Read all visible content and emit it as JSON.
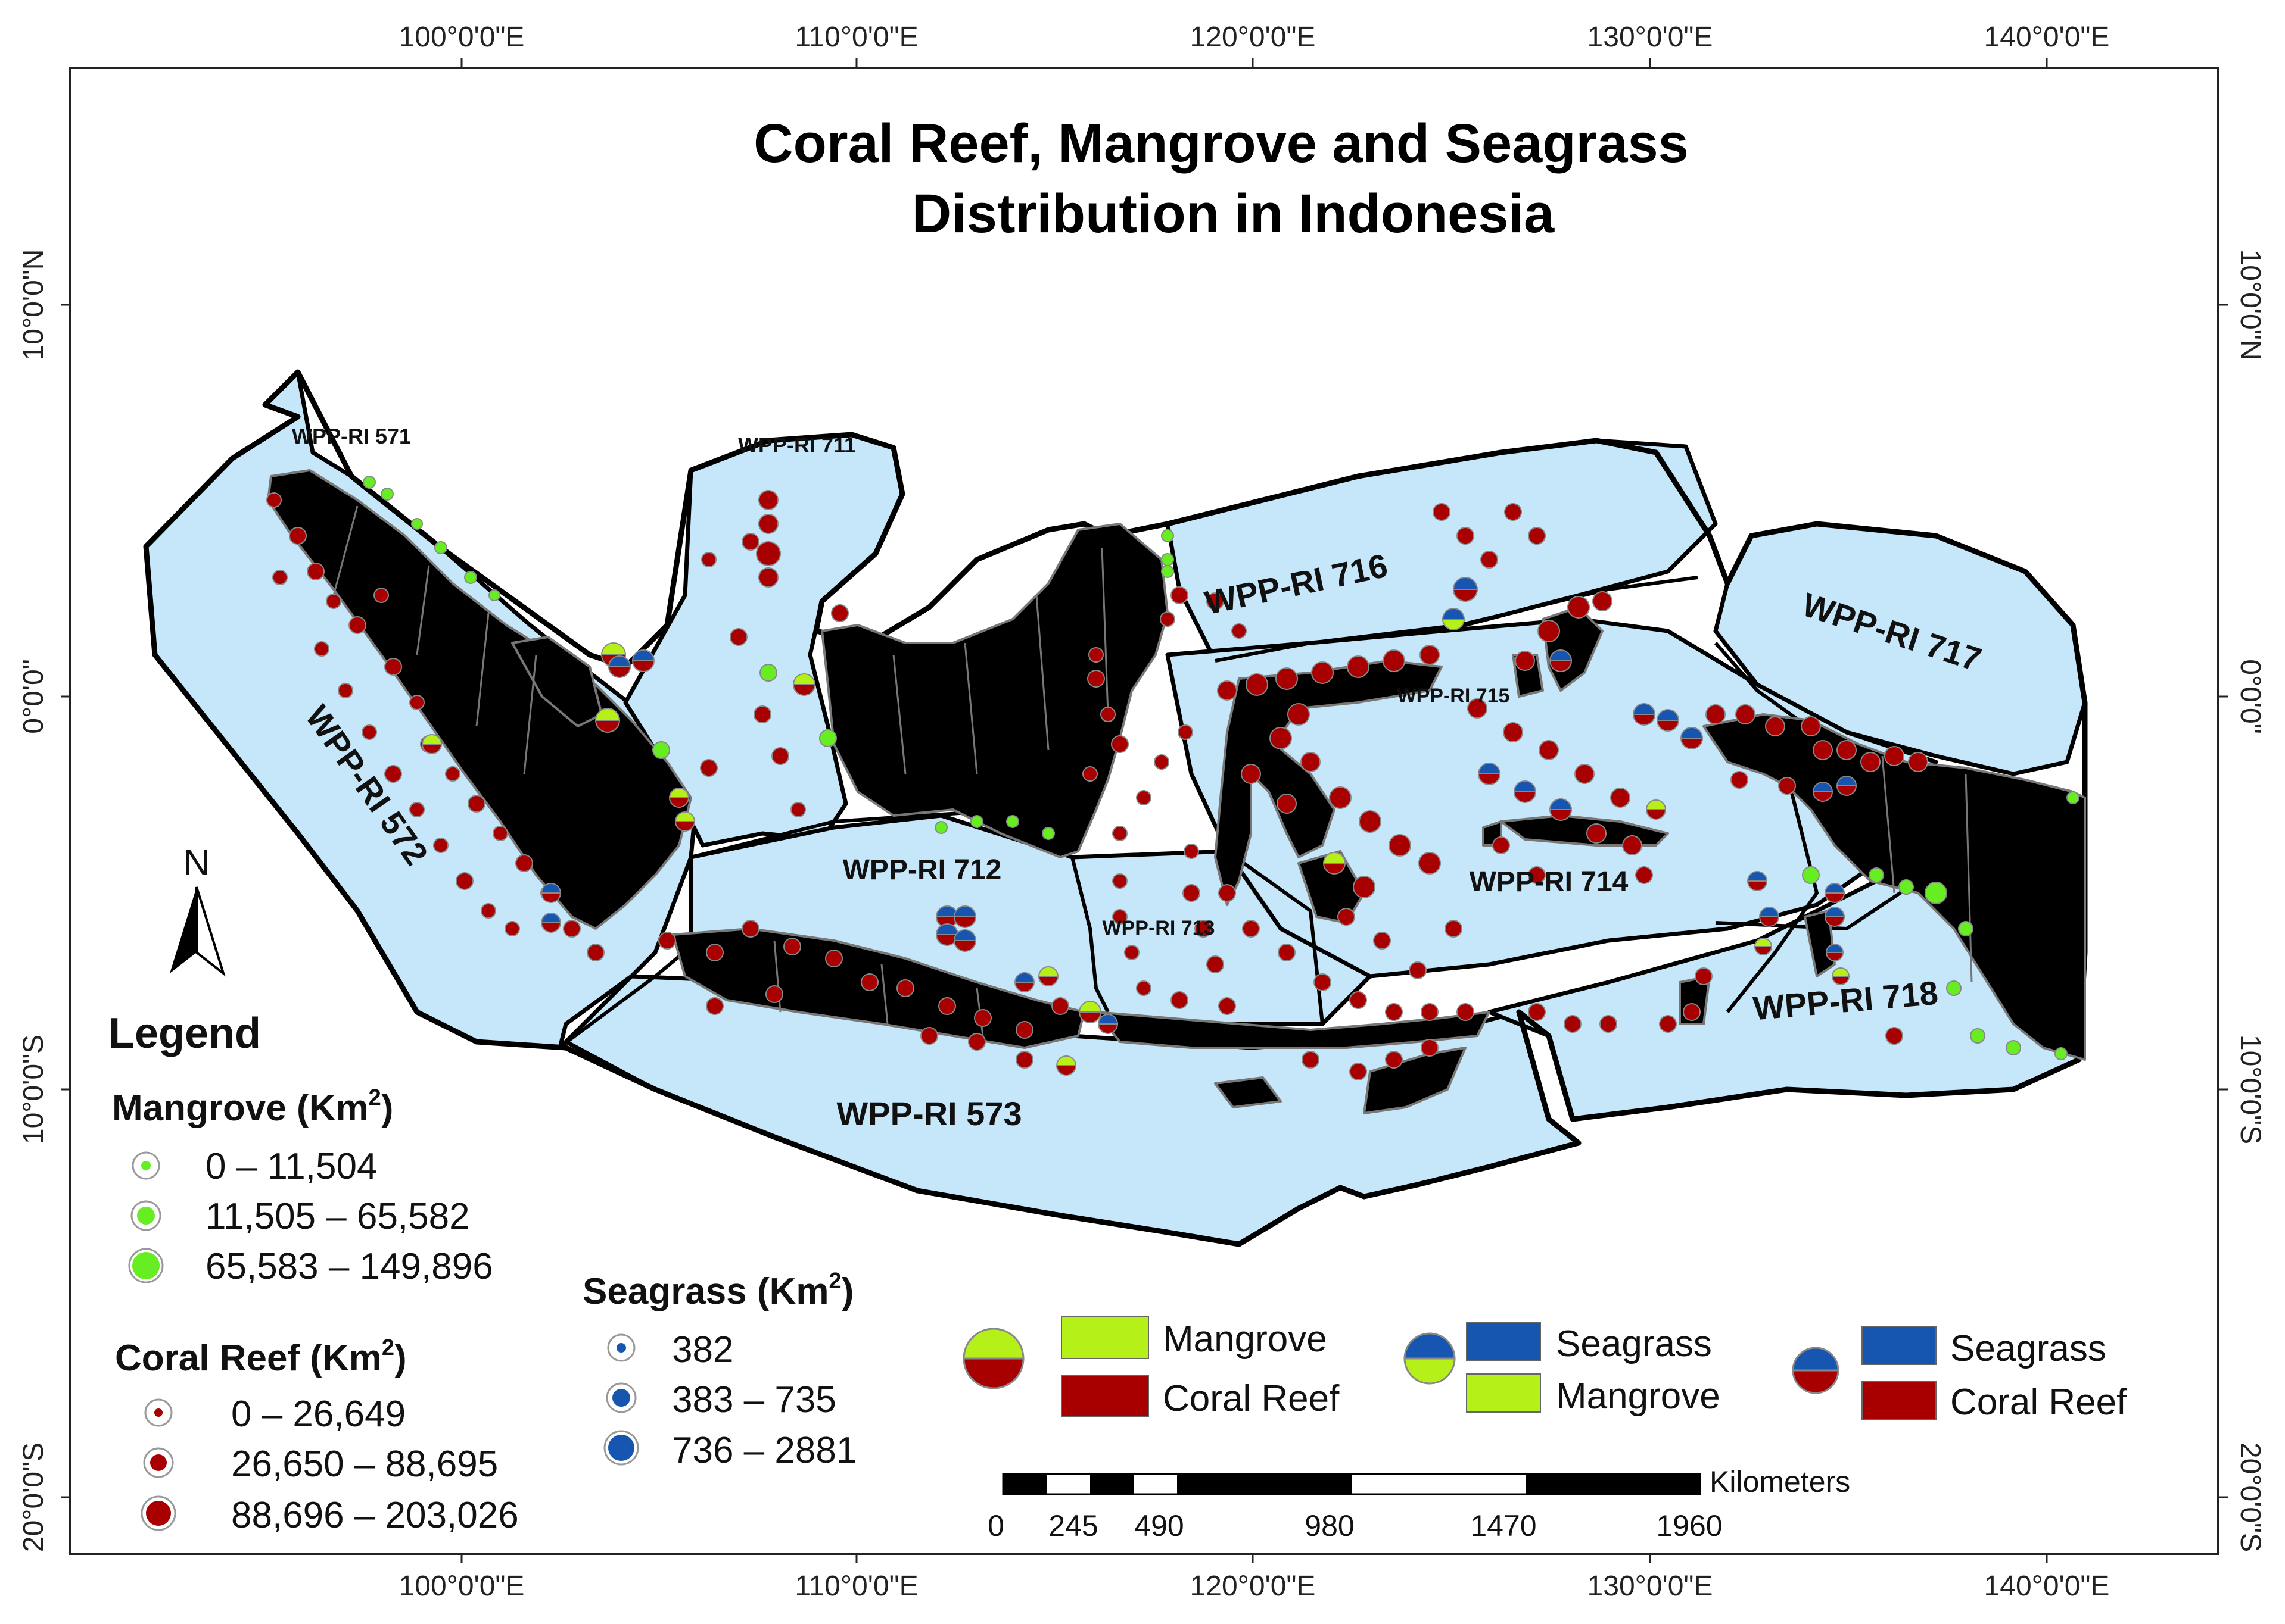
{
  "title": {
    "line1": "Coral Reef, Mangrove and Seagrass",
    "line2": "Distribution in Indonesia"
  },
  "axes": {
    "longitude_labels": [
      "100°0'0\"E",
      "110°0'0\"E",
      "120°0'0\"E",
      "130°0'0\"E",
      "140°0'0\"E"
    ],
    "latitude_labels": [
      "10°0'0\"N",
      "0°0'0\"",
      "10°0'0\"S",
      "20°0'0\"S"
    ]
  },
  "zones": {
    "z571": "WPP-RI 571",
    "z572": "WPP-RI 572",
    "z573": "WPP-RI 573",
    "z711": "WPP-RI 711",
    "z712": "WPP-RI 712",
    "z713": "WPP-RI 713",
    "z714": "WPP-RI 714",
    "z715": "WPP-RI 715",
    "z716": "WPP-RI 716",
    "z717": "WPP-RI 717",
    "z718": "WPP-RI 718"
  },
  "north_arrow": {
    "label": "N"
  },
  "legend": {
    "title": "Legend",
    "mangrove": {
      "title": "Mangrove (Km",
      "sup": "2",
      "close": ")",
      "classes": [
        "0 – 11,504",
        "11,505 – 65,582",
        "65,583 – 149,896"
      ]
    },
    "coral": {
      "title": "Coral Reef (Km",
      "sup": "2",
      "close": ")",
      "classes": [
        "0  –  26,649",
        "26,650 – 88,695",
        "88,696 – 203,026"
      ]
    },
    "seagrass": {
      "title": "Seagrass (Km",
      "sup": "2",
      "close": ")",
      "classes": [
        "382",
        "383 – 735",
        "736 – 2881"
      ]
    },
    "pie_keys": [
      {
        "top": "Mangrove",
        "bottom": "Coral Reef"
      },
      {
        "top": "Seagrass",
        "bottom": "Mangrove"
      },
      {
        "top": "Seagrass",
        "bottom": "Coral Reef"
      }
    ]
  },
  "scale_bar": {
    "unit": "Kilometers",
    "ticks": [
      "0",
      "245",
      "490",
      "980",
      "1470",
      "1960"
    ]
  },
  "colors": {
    "sea": "#c6e6fa",
    "land": "#000000",
    "mangrove": "#b5f019",
    "mangrove_bright": "#66ee22",
    "coral": "#a80000",
    "seagrass": "#1656b0"
  }
}
